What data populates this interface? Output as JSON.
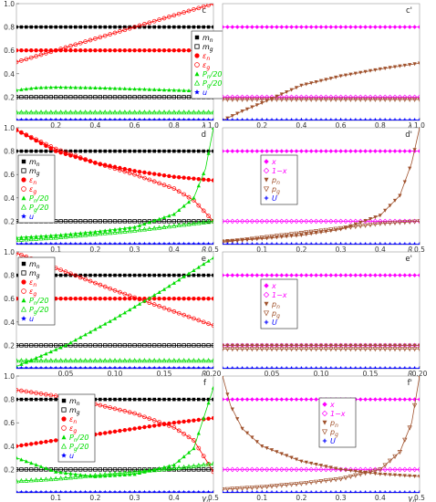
{
  "chart_data": [
    {
      "panel": "c",
      "type": "scatter",
      "xlabel": "λg",
      "xlim": [
        0,
        1
      ],
      "ylim": [
        0,
        1
      ],
      "xticks": [
        "0.2",
        "0.4",
        "0.6",
        "0.8",
        "1.0"
      ],
      "yticks": [
        "0.2",
        "0.4",
        "0.6",
        "0.8",
        "1.0"
      ],
      "legend": {
        "pos": "right",
        "entries": [
          {
            "label": "mn",
            "color": "#000000",
            "marker": "square"
          },
          {
            "label": "mg",
            "color": "#000000",
            "marker": "square-open"
          },
          {
            "label": "εn",
            "color": "#ff0000",
            "marker": "circle"
          },
          {
            "label": "εg",
            "color": "#ff0000",
            "marker": "circle-open"
          },
          {
            "label": "Pn/20",
            "color": "#00dd00",
            "marker": "triangle"
          },
          {
            "label": "Pg/20",
            "color": "#00dd00",
            "marker": "triangle-open"
          },
          {
            "label": "u",
            "color": "#0000ff",
            "marker": "star"
          }
        ]
      },
      "series": [
        {
          "name": "mn",
          "x": [
            0,
            1
          ],
          "y": [
            0.8,
            0.8
          ]
        },
        {
          "name": "mg",
          "x": [
            0,
            1
          ],
          "y": [
            0.2,
            0.2
          ]
        },
        {
          "name": "εn",
          "x": [
            0,
            1
          ],
          "y": [
            0.6,
            0.6
          ]
        },
        {
          "name": "εg",
          "x": [
            0,
            0.2,
            0.4,
            0.6,
            0.8,
            1.0
          ],
          "y": [
            0.5,
            0.6,
            0.7,
            0.8,
            0.9,
            1.0
          ]
        },
        {
          "name": "Pn/20",
          "x": [
            0,
            0.1,
            0.2,
            0.4,
            0.6,
            0.8,
            1.0
          ],
          "y": [
            0.26,
            0.28,
            0.285,
            0.28,
            0.27,
            0.26,
            0.25
          ]
        },
        {
          "name": "Pg/20",
          "x": [
            0,
            1
          ],
          "y": [
            0.07,
            0.07
          ]
        },
        {
          "name": "u",
          "x": [
            0,
            1
          ],
          "y": [
            0.005,
            0.005
          ]
        }
      ]
    },
    {
      "panel": "c'",
      "type": "scatter",
      "xlabel": "λg",
      "xlim": [
        0,
        1
      ],
      "ylim": [
        0,
        1
      ],
      "xticks": [
        "0.2",
        "0.4",
        "0.6",
        "0.8",
        "1.0"
      ],
      "legend": {
        "pos": "right",
        "entries": [
          {
            "label": "x",
            "color": "#ff00ff",
            "marker": "diamond"
          },
          {
            "label": "1−x",
            "color": "#ff00ff",
            "marker": "diamond-open"
          },
          {
            "label": "pn",
            "color": "#a0522d",
            "marker": "tri-down"
          },
          {
            "label": "pg",
            "color": "#a0522d",
            "marker": "tri-down-open"
          },
          {
            "label": "U",
            "color": "#0000ff",
            "marker": "plus"
          }
        ]
      },
      "series": [
        {
          "name": "x",
          "x": [
            0,
            1
          ],
          "y": [
            0.8,
            0.8
          ]
        },
        {
          "name": "1−x",
          "x": [
            0,
            1
          ],
          "y": [
            0.2,
            0.2
          ]
        },
        {
          "name": "pn",
          "x": [
            0,
            0.1,
            0.2,
            0.4,
            0.6,
            0.8,
            1.0
          ],
          "y": [
            0.0,
            0.08,
            0.15,
            0.3,
            0.38,
            0.44,
            0.49
          ]
        },
        {
          "name": "pg",
          "x": [
            0,
            1
          ],
          "y": [
            0.18,
            0.18
          ]
        },
        {
          "name": "U",
          "x": [
            0,
            1
          ],
          "y": [
            0.005,
            0.005
          ]
        }
      ]
    },
    {
      "panel": "d",
      "type": "scatter",
      "xlabel": "βn",
      "xlim": [
        0,
        0.5
      ],
      "ylim": [
        0,
        1
      ],
      "xticks": [
        "0.1",
        "0.2",
        "0.3",
        "0.4",
        "0.5"
      ],
      "yticks": [
        "0.2",
        "0.4",
        "0.6",
        "0.8",
        "1.0"
      ],
      "legend": {
        "pos": "left",
        "entries": [
          {
            "label": "mn",
            "color": "#000000",
            "marker": "square"
          },
          {
            "label": "mg",
            "color": "#000000",
            "marker": "square-open"
          },
          {
            "label": "εn",
            "color": "#ff0000",
            "marker": "circle"
          },
          {
            "label": "εg",
            "color": "#ff0000",
            "marker": "circle-open"
          },
          {
            "label": "Pn/20",
            "color": "#00dd00",
            "marker": "triangle"
          },
          {
            "label": "Pg/20",
            "color": "#00dd00",
            "marker": "triangle-open"
          },
          {
            "label": "u",
            "color": "#0000ff",
            "marker": "star"
          }
        ]
      },
      "series": [
        {
          "name": "mn",
          "x": [
            0,
            0.5
          ],
          "y": [
            0.8,
            0.8
          ]
        },
        {
          "name": "mg",
          "x": [
            0,
            0.5
          ],
          "y": [
            0.2,
            0.2
          ]
        },
        {
          "name": "εn",
          "x": [
            0,
            0.1,
            0.2,
            0.3,
            0.4,
            0.5
          ],
          "y": [
            0.98,
            0.8,
            0.7,
            0.63,
            0.58,
            0.55
          ]
        },
        {
          "name": "εg",
          "x": [
            0,
            0.1,
            0.2,
            0.3,
            0.4,
            0.45,
            0.5
          ],
          "y": [
            0.98,
            0.82,
            0.7,
            0.6,
            0.48,
            0.38,
            0.2
          ]
        },
        {
          "name": "Pn/20",
          "x": [
            0,
            0.1,
            0.2,
            0.3,
            0.4,
            0.45,
            0.48,
            0.5
          ],
          "y": [
            0.06,
            0.08,
            0.11,
            0.15,
            0.26,
            0.4,
            0.65,
            1.0
          ]
        },
        {
          "name": "Pg/20",
          "x": [
            0,
            0.1,
            0.2,
            0.3,
            0.4,
            0.5
          ],
          "y": [
            0.04,
            0.06,
            0.09,
            0.12,
            0.16,
            0.2
          ]
        },
        {
          "name": "u",
          "x": [
            0,
            0.5
          ],
          "y": [
            0.005,
            0.005
          ]
        }
      ]
    },
    {
      "panel": "d'",
      "type": "scatter",
      "xlabel": "βn",
      "xlim": [
        0,
        0.5
      ],
      "ylim": [
        0,
        1
      ],
      "xticks": [
        "0.1",
        "0.2",
        "0.3",
        "0.4",
        "0.5"
      ],
      "legend": {
        "pos": "left",
        "entries": [
          {
            "label": "x",
            "color": "#ff00ff",
            "marker": "diamond"
          },
          {
            "label": "1−x",
            "color": "#ff00ff",
            "marker": "diamond-open"
          },
          {
            "label": "pn",
            "color": "#a0522d",
            "marker": "tri-down"
          },
          {
            "label": "pg",
            "color": "#a0522d",
            "marker": "tri-down-open"
          },
          {
            "label": "U",
            "color": "#0000ff",
            "marker": "plus"
          }
        ]
      },
      "series": [
        {
          "name": "x",
          "x": [
            0,
            0.5
          ],
          "y": [
            0.8,
            0.8
          ]
        },
        {
          "name": "1−x",
          "x": [
            0,
            0.5
          ],
          "y": [
            0.2,
            0.2
          ]
        },
        {
          "name": "pn",
          "x": [
            0,
            0.1,
            0.2,
            0.3,
            0.4,
            0.45,
            0.48,
            0.5
          ],
          "y": [
            0.03,
            0.05,
            0.08,
            0.13,
            0.25,
            0.42,
            0.7,
            1.0
          ]
        },
        {
          "name": "pg",
          "x": [
            0,
            0.1,
            0.2,
            0.3,
            0.4,
            0.5
          ],
          "y": [
            0.02,
            0.06,
            0.1,
            0.14,
            0.18,
            0.2
          ]
        },
        {
          "name": "U",
          "x": [
            0,
            0.5
          ],
          "y": [
            0.005,
            0.005
          ]
        }
      ]
    },
    {
      "panel": "e",
      "type": "scatter",
      "xlabel": "βg",
      "xlim": [
        0,
        0.2
      ],
      "ylim": [
        0,
        1
      ],
      "xticks": [
        "0.05",
        "0.10",
        "0.15",
        "0.20"
      ],
      "yticks": [
        "0.2",
        "0.4",
        "0.6",
        "0.8",
        "1.0"
      ],
      "legend": {
        "pos": "left",
        "entries": [
          {
            "label": "mn",
            "color": "#000000",
            "marker": "square"
          },
          {
            "label": "mg",
            "color": "#000000",
            "marker": "square-open"
          },
          {
            "label": "εn",
            "color": "#ff0000",
            "marker": "circle"
          },
          {
            "label": "εg",
            "color": "#ff0000",
            "marker": "circle-open"
          },
          {
            "label": "Pn/20",
            "color": "#00dd00",
            "marker": "triangle"
          },
          {
            "label": "Pg/20",
            "color": "#00dd00",
            "marker": "triangle-open"
          },
          {
            "label": "u",
            "color": "#0000ff",
            "marker": "star"
          }
        ]
      },
      "series": [
        {
          "name": "mn",
          "x": [
            0,
            0.2
          ],
          "y": [
            0.8,
            0.8
          ]
        },
        {
          "name": "mg",
          "x": [
            0,
            0.2
          ],
          "y": [
            0.2,
            0.2
          ]
        },
        {
          "name": "εn",
          "x": [
            0,
            0.2
          ],
          "y": [
            0.6,
            0.6
          ]
        },
        {
          "name": "εg",
          "x": [
            0,
            0.05,
            0.1,
            0.15,
            0.2
          ],
          "y": [
            0.99,
            0.83,
            0.67,
            0.52,
            0.37
          ]
        },
        {
          "name": "Pn/20",
          "x": [
            0,
            0.05,
            0.1,
            0.15,
            0.2
          ],
          "y": [
            0.02,
            0.2,
            0.43,
            0.68,
            0.95
          ]
        },
        {
          "name": "Pg/20",
          "x": [
            0,
            0.2
          ],
          "y": [
            0.07,
            0.07
          ]
        },
        {
          "name": "u",
          "x": [
            0,
            0.2
          ],
          "y": [
            0.005,
            0.005
          ]
        }
      ]
    },
    {
      "panel": "e'",
      "type": "scatter",
      "xlabel": "βg",
      "xlim": [
        0,
        0.2
      ],
      "ylim": [
        0,
        1
      ],
      "xticks": [
        "0.05",
        "0.10",
        "0.15",
        "0.20"
      ],
      "legend": {
        "pos": "left",
        "entries": [
          {
            "label": "x",
            "color": "#ff00ff",
            "marker": "diamond"
          },
          {
            "label": "1−x",
            "color": "#ff00ff",
            "marker": "diamond-open"
          },
          {
            "label": "pn",
            "color": "#a0522d",
            "marker": "tri-down"
          },
          {
            "label": "pg",
            "color": "#a0522d",
            "marker": "tri-down-open"
          },
          {
            "label": "U",
            "color": "#0000ff",
            "marker": "plus"
          }
        ]
      },
      "series": [
        {
          "name": "x",
          "x": [
            0,
            0.2
          ],
          "y": [
            0.8,
            0.8
          ]
        },
        {
          "name": "1−x",
          "x": [
            0,
            0.2
          ],
          "y": [
            0.2,
            0.2
          ]
        },
        {
          "name": "pn",
          "x": [
            0,
            0.2
          ],
          "y": [
            0.2,
            0.2
          ]
        },
        {
          "name": "pg",
          "x": [
            0,
            0.2
          ],
          "y": [
            0.17,
            0.17
          ]
        },
        {
          "name": "U",
          "x": [
            0,
            0.2
          ],
          "y": [
            0.005,
            0.005
          ]
        }
      ]
    },
    {
      "panel": "f",
      "type": "scatter",
      "xlabel": "γn",
      "xlim": [
        0,
        0.5
      ],
      "ylim": [
        0,
        1
      ],
      "xticks": [
        "0.1",
        "0.2",
        "0.3",
        "0.4",
        "0.5"
      ],
      "yticks": [
        "0.2",
        "0.4",
        "0.6",
        "0.8",
        "1.0"
      ],
      "legend": {
        "pos": "center",
        "entries": [
          {
            "label": "mn",
            "color": "#000000",
            "marker": "square"
          },
          {
            "label": "mg",
            "color": "#000000",
            "marker": "square-open"
          },
          {
            "label": "εn",
            "color": "#ff0000",
            "marker": "circle"
          },
          {
            "label": "εg",
            "color": "#ff0000",
            "marker": "circle-open"
          },
          {
            "label": "Pn/20",
            "color": "#00dd00",
            "marker": "triangle"
          },
          {
            "label": "Pg/20",
            "color": "#00dd00",
            "marker": "triangle-open"
          },
          {
            "label": "u",
            "color": "#0000ff",
            "marker": "star"
          }
        ]
      },
      "series": [
        {
          "name": "mn",
          "x": [
            0,
            0.5
          ],
          "y": [
            0.8,
            0.8
          ]
        },
        {
          "name": "mg",
          "x": [
            0,
            0.5
          ],
          "y": [
            0.2,
            0.2
          ]
        },
        {
          "name": "εn",
          "x": [
            0,
            0.1,
            0.2,
            0.3,
            0.4,
            0.5
          ],
          "y": [
            0.4,
            0.45,
            0.5,
            0.55,
            0.6,
            0.64
          ]
        },
        {
          "name": "εg",
          "x": [
            0,
            0.1,
            0.2,
            0.3,
            0.4,
            0.45,
            0.5
          ],
          "y": [
            0.88,
            0.83,
            0.76,
            0.68,
            0.56,
            0.45,
            0.18
          ]
        },
        {
          "name": "Pn/20",
          "x": [
            0,
            0.1,
            0.2,
            0.3,
            0.4,
            0.45,
            0.5
          ],
          "y": [
            0.3,
            0.18,
            0.14,
            0.16,
            0.24,
            0.38,
            0.9
          ]
        },
        {
          "name": "Pg/20",
          "x": [
            0,
            0.1,
            0.2,
            0.3,
            0.4,
            0.5
          ],
          "y": [
            0.1,
            0.12,
            0.15,
            0.18,
            0.21,
            0.25
          ]
        },
        {
          "name": "u",
          "x": [
            0,
            0.5
          ],
          "y": [
            0.005,
            0.005
          ]
        }
      ]
    },
    {
      "panel": "f'",
      "type": "scatter",
      "xlabel": "γn",
      "xlim": [
        0,
        0.5
      ],
      "ylim": [
        0,
        1
      ],
      "xticks": [
        "0.1",
        "0.2",
        "0.3",
        "0.4",
        "0.5"
      ],
      "legend": {
        "pos": "center",
        "entries": [
          {
            "label": "x",
            "color": "#ff00ff",
            "marker": "diamond"
          },
          {
            "label": "1−x",
            "color": "#ff00ff",
            "marker": "diamond-open"
          },
          {
            "label": "pn",
            "color": "#a0522d",
            "marker": "tri-down"
          },
          {
            "label": "pg",
            "color": "#a0522d",
            "marker": "tri-down-open"
          },
          {
            "label": "U",
            "color": "#0000ff",
            "marker": "plus"
          }
        ]
      },
      "series": [
        {
          "name": "x",
          "x": [
            0,
            0.5
          ],
          "y": [
            0.8,
            0.8
          ]
        },
        {
          "name": "1−x",
          "x": [
            0,
            0.5
          ],
          "y": [
            0.2,
            0.2
          ]
        },
        {
          "name": "pn",
          "x": [
            0,
            0.02,
            0.05,
            0.1,
            0.2,
            0.3,
            0.4,
            0.5
          ],
          "y": [
            1.0,
            0.75,
            0.55,
            0.4,
            0.27,
            0.2,
            0.16,
            0.14
          ]
        },
        {
          "name": "pg",
          "x": [
            0,
            0.1,
            0.2,
            0.3,
            0.4,
            0.45,
            0.48,
            0.5
          ],
          "y": [
            0.03,
            0.05,
            0.08,
            0.12,
            0.2,
            0.35,
            0.6,
            1.0
          ]
        },
        {
          "name": "U",
          "x": [
            0,
            0.5
          ],
          "y": [
            0.005,
            0.005
          ]
        }
      ]
    }
  ]
}
